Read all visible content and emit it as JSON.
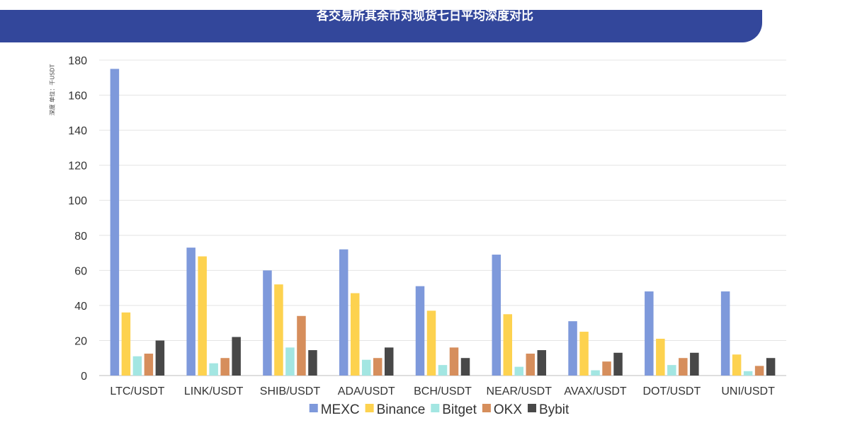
{
  "chart_data": {
    "type": "bar",
    "title": "各交易所其余币对现货七日平均深度对比",
    "ylabel": "深度 单位：千USDT",
    "ylim": [
      0,
      180
    ],
    "yticks": [
      0,
      20,
      40,
      60,
      80,
      100,
      120,
      140,
      160,
      180
    ],
    "grid": true,
    "legend_position": "bottom",
    "categories": [
      "LTC/USDT",
      "LINK/USDT",
      "SHIB/USDT",
      "ADA/USDT",
      "BCH/USDT",
      "NEAR/USDT",
      "AVAX/USDT",
      "DOT/USDT",
      "UNI/USDT"
    ],
    "series": [
      {
        "name": "MEXC",
        "color": "#7e99db",
        "values": [
          175,
          73,
          60,
          72,
          51,
          69,
          31,
          48,
          48
        ]
      },
      {
        "name": "Binance",
        "color": "#fdd24f",
        "values": [
          36,
          68,
          52,
          47,
          37,
          35,
          25,
          21,
          12
        ]
      },
      {
        "name": "Bitget",
        "color": "#a3e6e2",
        "values": [
          11,
          7,
          16,
          9,
          6,
          5,
          3,
          6,
          2.5
        ]
      },
      {
        "name": "OKX",
        "color": "#d68e5c",
        "values": [
          12.5,
          10,
          34,
          10,
          16,
          12.5,
          8,
          10,
          5.5
        ]
      },
      {
        "name": "Bybit",
        "color": "#484848",
        "values": [
          20,
          22,
          14.5,
          16,
          10,
          14.5,
          13,
          13,
          10
        ]
      }
    ]
  }
}
